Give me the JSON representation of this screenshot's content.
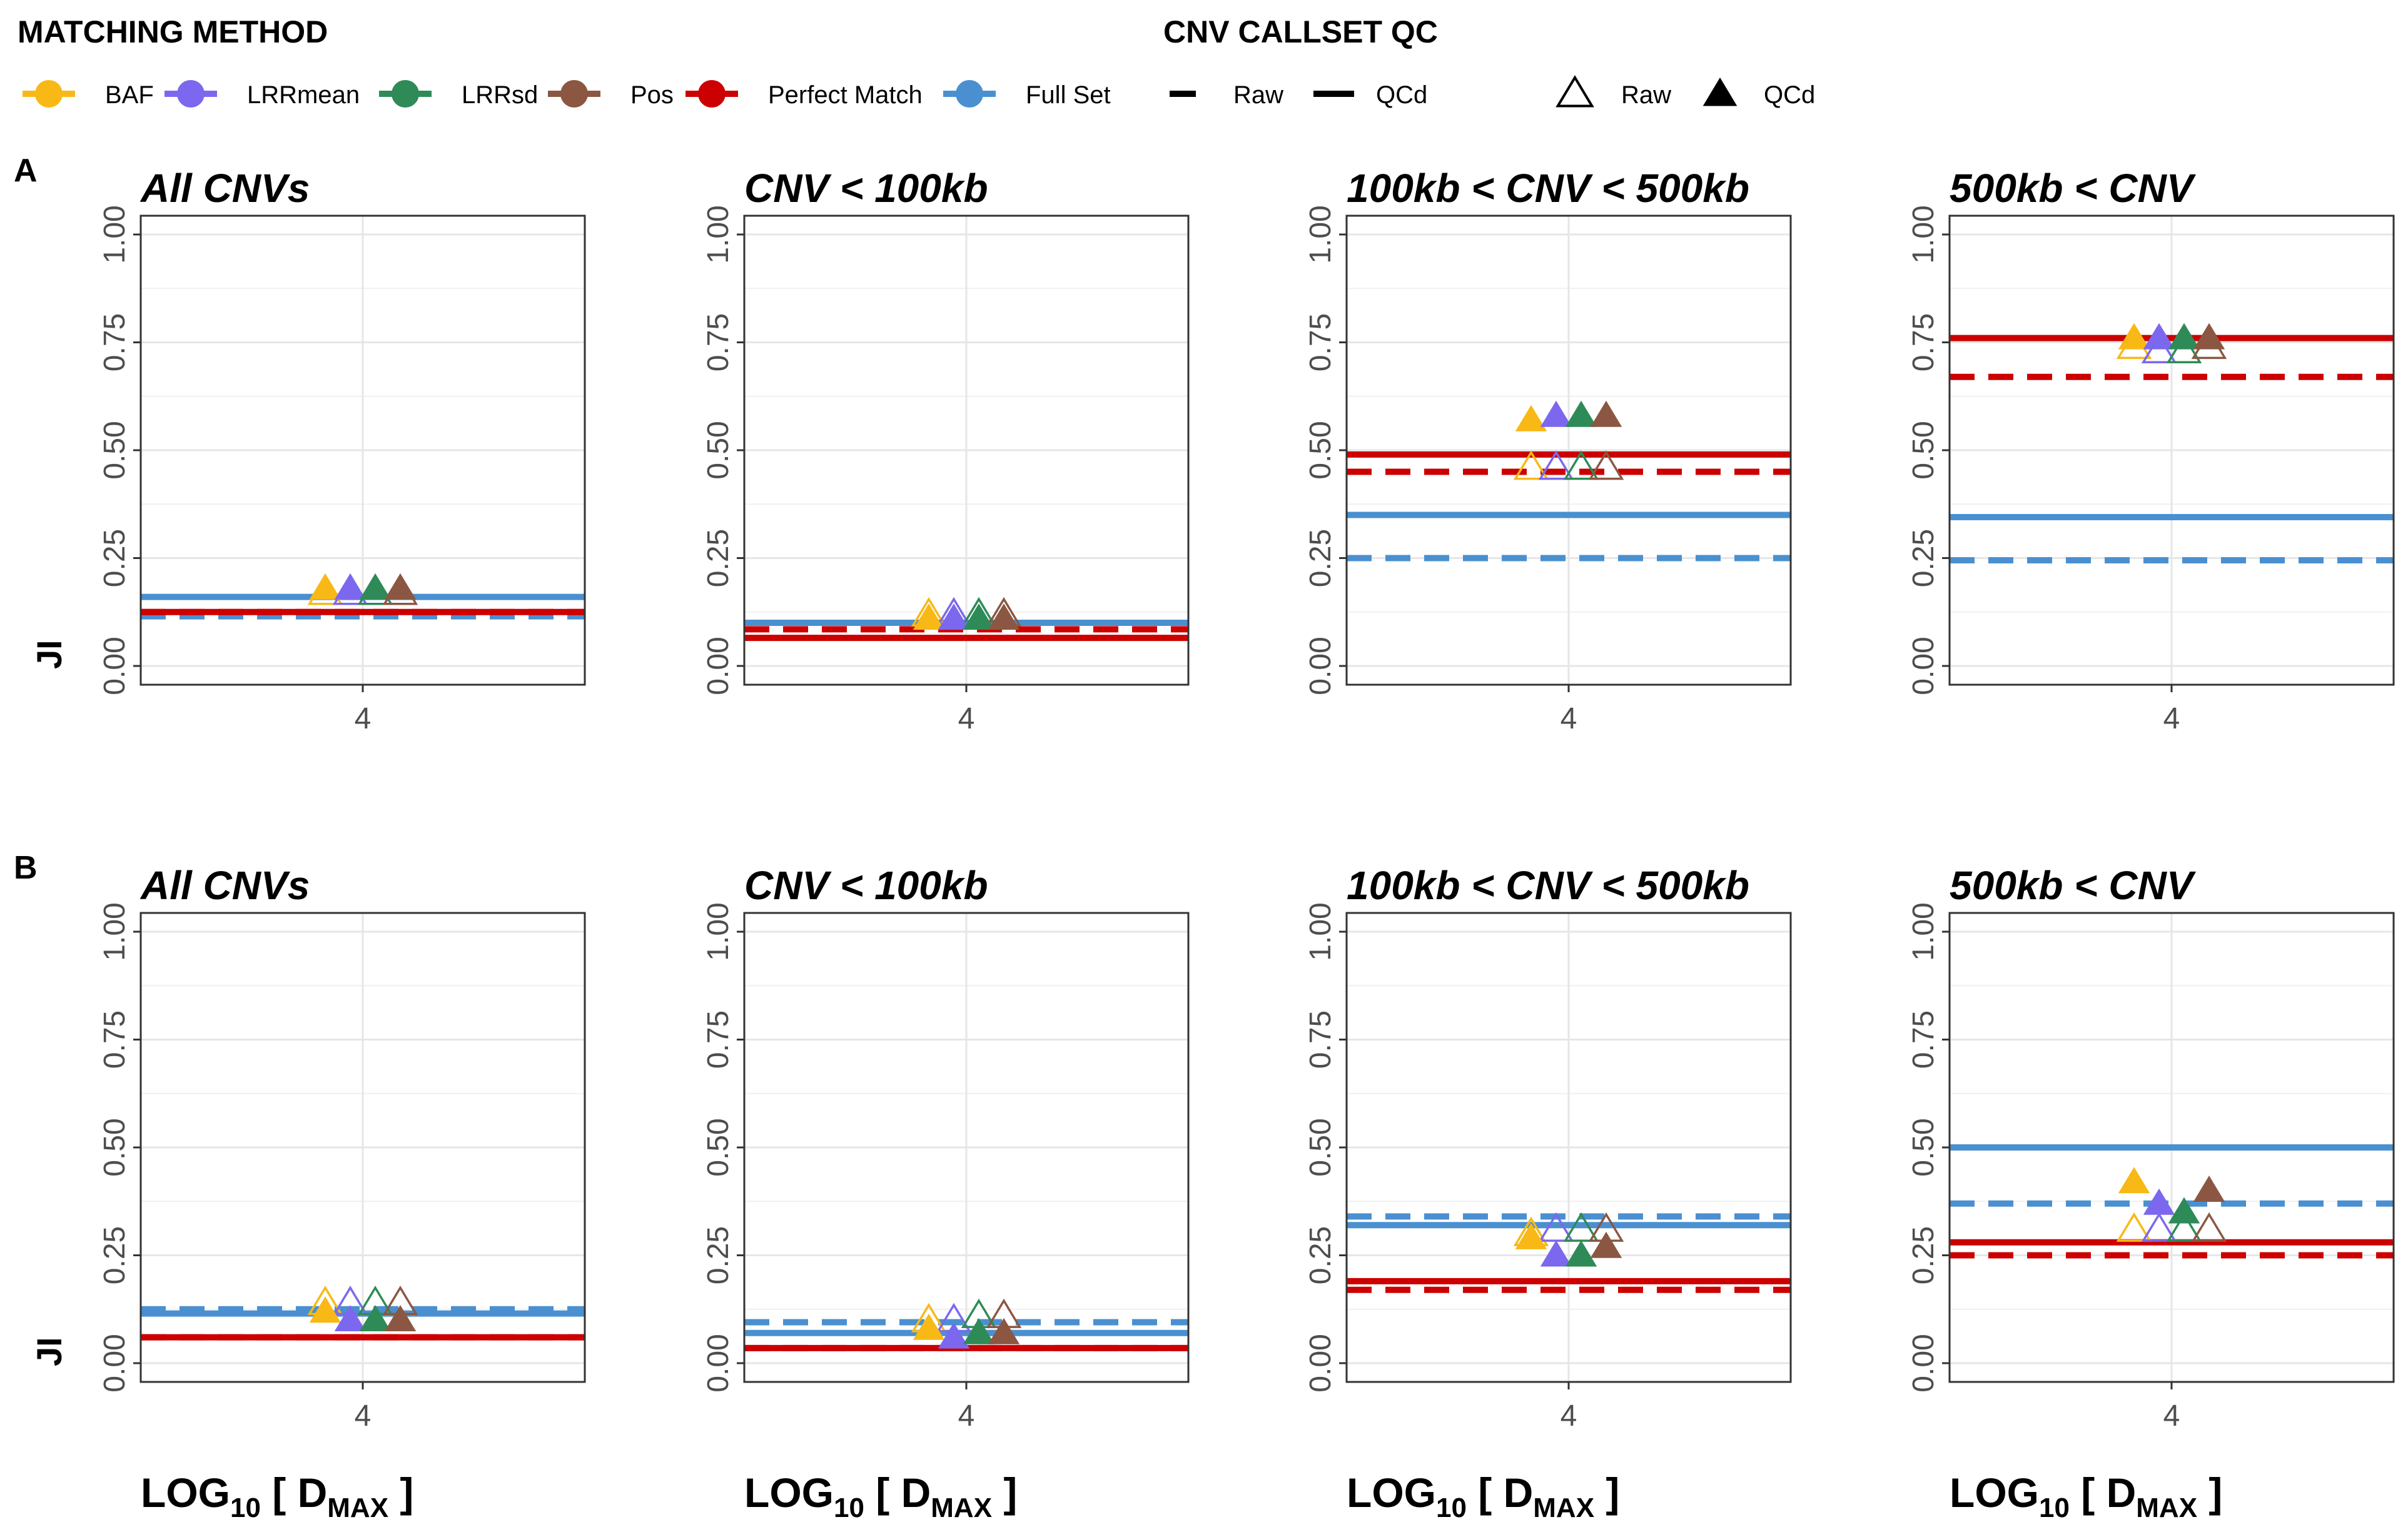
{
  "legend": {
    "method_title": "MATCHING METHOD",
    "qc_title": "CNV CALLSET QC",
    "methods": [
      {
        "key": "baf",
        "label": "BAF",
        "color": "#F8B916"
      },
      {
        "key": "lrrmean",
        "label": "LRRmean",
        "color": "#7B68EE"
      },
      {
        "key": "lrrsd",
        "label": "LRRsd",
        "color": "#2E8B57"
      },
      {
        "key": "pos",
        "label": "Pos",
        "color": "#8B5742"
      },
      {
        "key": "perfect",
        "label": "Perfect Match",
        "color": "#CC0000"
      },
      {
        "key": "full",
        "label": "Full Set",
        "color": "#4A90D0"
      }
    ],
    "line_types": [
      {
        "key": "raw",
        "label": "Raw"
      },
      {
        "key": "qcd",
        "label": "QCd"
      }
    ],
    "shapes": [
      {
        "key": "raw",
        "label": "Raw"
      },
      {
        "key": "qcd",
        "label": "QCd"
      }
    ]
  },
  "rows": [
    {
      "label": "A",
      "ylabel": "JI"
    },
    {
      "label": "B",
      "ylabel": "JI"
    }
  ],
  "xlabel": {
    "main": "LOG",
    "sub": "10",
    "mid": " [ D",
    "sub2": "MAX",
    "end": " ]"
  },
  "chart_data": [
    {
      "type": "scatter",
      "row": "A",
      "title": "All CNVs",
      "ylim": [
        0,
        1
      ],
      "yticks": [
        "0.00",
        "0.25",
        "0.50",
        "0.75",
        "1.00"
      ],
      "xtick": "4",
      "hlines": {
        "full_qcd": 0.16,
        "full_raw": 0.115,
        "perfect_qcd": 0.125,
        "perfect_raw": 0.125
      },
      "points": {
        "raw": {
          "baf": 0.17,
          "lrrmean": 0.17,
          "lrrsd": 0.17,
          "pos": 0.17
        },
        "qcd": {
          "baf": 0.18,
          "lrrmean": 0.18,
          "lrrsd": 0.18,
          "pos": 0.18
        }
      }
    },
    {
      "type": "scatter",
      "row": "A",
      "title": "CNV < 100kb",
      "ylim": [
        0,
        1
      ],
      "yticks": [
        "0.00",
        "0.25",
        "0.50",
        "0.75",
        "1.00"
      ],
      "xtick": "4",
      "hlines": {
        "full_qcd": 0.1,
        "full_raw": 0.1,
        "perfect_qcd": 0.065,
        "perfect_raw": 0.085
      },
      "points": {
        "raw": {
          "baf": 0.12,
          "lrrmean": 0.12,
          "lrrsd": 0.12,
          "pos": 0.12
        },
        "qcd": {
          "baf": 0.11,
          "lrrmean": 0.11,
          "lrrsd": 0.11,
          "pos": 0.11
        }
      }
    },
    {
      "type": "scatter",
      "row": "A",
      "title": "100kb < CNV < 500kb",
      "ylim": [
        0,
        1
      ],
      "yticks": [
        "0.00",
        "0.25",
        "0.50",
        "0.75",
        "1.00"
      ],
      "xtick": "4",
      "hlines": {
        "full_qcd": 0.35,
        "full_raw": 0.25,
        "perfect_qcd": 0.49,
        "perfect_raw": 0.45
      },
      "points": {
        "raw": {
          "baf": 0.46,
          "lrrmean": 0.46,
          "lrrsd": 0.46,
          "pos": 0.46
        },
        "qcd": {
          "baf": 0.57,
          "lrrmean": 0.58,
          "lrrsd": 0.58,
          "pos": 0.58
        }
      }
    },
    {
      "type": "scatter",
      "row": "A",
      "title": "500kb < CNV",
      "ylim": [
        0,
        1
      ],
      "yticks": [
        "0.00",
        "0.25",
        "0.50",
        "0.75",
        "1.00"
      ],
      "xtick": "4",
      "hlines": {
        "full_qcd": 0.345,
        "full_raw": 0.245,
        "perfect_qcd": 0.76,
        "perfect_raw": 0.67
      },
      "points": {
        "raw": {
          "baf": 0.74,
          "lrrmean": 0.73,
          "lrrsd": 0.73,
          "pos": 0.74
        },
        "qcd": {
          "baf": 0.76,
          "lrrmean": 0.76,
          "lrrsd": 0.76,
          "pos": 0.76
        }
      }
    },
    {
      "type": "scatter",
      "row": "B",
      "title": "All CNVs",
      "ylim": [
        0,
        1
      ],
      "yticks": [
        "0.00",
        "0.25",
        "0.50",
        "0.75",
        "1.00"
      ],
      "xtick": "4",
      "hlines": {
        "full_qcd": 0.115,
        "full_raw": 0.125,
        "perfect_qcd": 0.06,
        "perfect_raw": 0.06
      },
      "points": {
        "raw": {
          "baf": 0.14,
          "lrrmean": 0.14,
          "lrrsd": 0.14,
          "pos": 0.14
        },
        "qcd": {
          "baf": 0.12,
          "lrrmean": 0.1,
          "lrrsd": 0.1,
          "pos": 0.1
        }
      }
    },
    {
      "type": "scatter",
      "row": "B",
      "title": "CNV < 100kb",
      "ylim": [
        0,
        1
      ],
      "yticks": [
        "0.00",
        "0.25",
        "0.50",
        "0.75",
        "1.00"
      ],
      "xtick": "4",
      "hlines": {
        "full_qcd": 0.07,
        "full_raw": 0.095,
        "perfect_qcd": 0.035,
        "perfect_raw": 0.035
      },
      "points": {
        "raw": {
          "baf": 0.1,
          "lrrmean": 0.1,
          "lrrsd": 0.11,
          "pos": 0.11
        },
        "qcd": {
          "baf": 0.08,
          "lrrmean": 0.06,
          "lrrsd": 0.07,
          "pos": 0.07
        }
      }
    },
    {
      "type": "scatter",
      "row": "B",
      "title": "100kb < CNV < 500kb",
      "ylim": [
        0,
        1
      ],
      "yticks": [
        "0.00",
        "0.25",
        "0.50",
        "0.75",
        "1.00"
      ],
      "xtick": "4",
      "hlines": {
        "full_qcd": 0.32,
        "full_raw": 0.34,
        "perfect_qcd": 0.19,
        "perfect_raw": 0.17
      },
      "points": {
        "raw": {
          "baf": 0.3,
          "lrrmean": 0.31,
          "lrrsd": 0.31,
          "pos": 0.31
        },
        "qcd": {
          "baf": 0.29,
          "lrrmean": 0.25,
          "lrrsd": 0.25,
          "pos": 0.27
        }
      }
    },
    {
      "type": "scatter",
      "row": "B",
      "title": "500kb < CNV",
      "ylim": [
        0,
        1
      ],
      "yticks": [
        "0.00",
        "0.25",
        "0.50",
        "0.75",
        "1.00"
      ],
      "xtick": "4",
      "hlines": {
        "full_qcd": 0.5,
        "full_raw": 0.37,
        "perfect_qcd": 0.28,
        "perfect_raw": 0.25
      },
      "points": {
        "raw": {
          "baf": 0.31,
          "lrrmean": 0.31,
          "lrrsd": 0.31,
          "pos": 0.31
        },
        "qcd": {
          "baf": 0.42,
          "lrrmean": 0.37,
          "lrrsd": 0.35,
          "pos": 0.4
        }
      }
    }
  ]
}
